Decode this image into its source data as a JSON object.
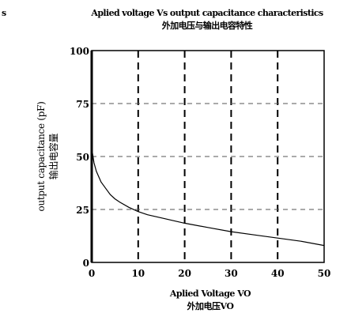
{
  "chart_data": {
    "type": "line",
    "title": "Aplied voltage Vs output capacitance characteristics",
    "title_cjk": "外加电压与输出电容特性",
    "corner_fragment": "s",
    "xlabel": "Aplied Voltage VO",
    "xlabel_cjk": "外加电压VO",
    "ylabel": "output capacitance (pF)",
    "ylabel_cjk": "输出电容量",
    "xlim": [
      0,
      50
    ],
    "ylim": [
      0,
      100
    ],
    "xticks": [
      0,
      10,
      20,
      30,
      40,
      50
    ],
    "yticks": [
      0,
      25,
      50,
      75,
      100
    ],
    "x_tick_labels": [
      "0",
      "10",
      "20",
      "30",
      "40",
      "50"
    ],
    "y_tick_labels": [
      "0",
      "25",
      "50",
      "75",
      "100"
    ],
    "grid": {
      "x": "dashed-bold",
      "y": "dashed"
    },
    "series": [
      {
        "x": [
          0,
          0.5,
          1,
          2,
          3,
          4,
          5,
          6,
          8,
          10,
          12,
          15,
          20,
          25,
          30,
          35,
          40,
          45,
          50
        ],
        "y": [
          54,
          47,
          43,
          38,
          35,
          32,
          30,
          28.5,
          26,
          24,
          22.5,
          21,
          18.5,
          16.5,
          14.5,
          13,
          11.5,
          10,
          8
        ]
      }
    ]
  }
}
